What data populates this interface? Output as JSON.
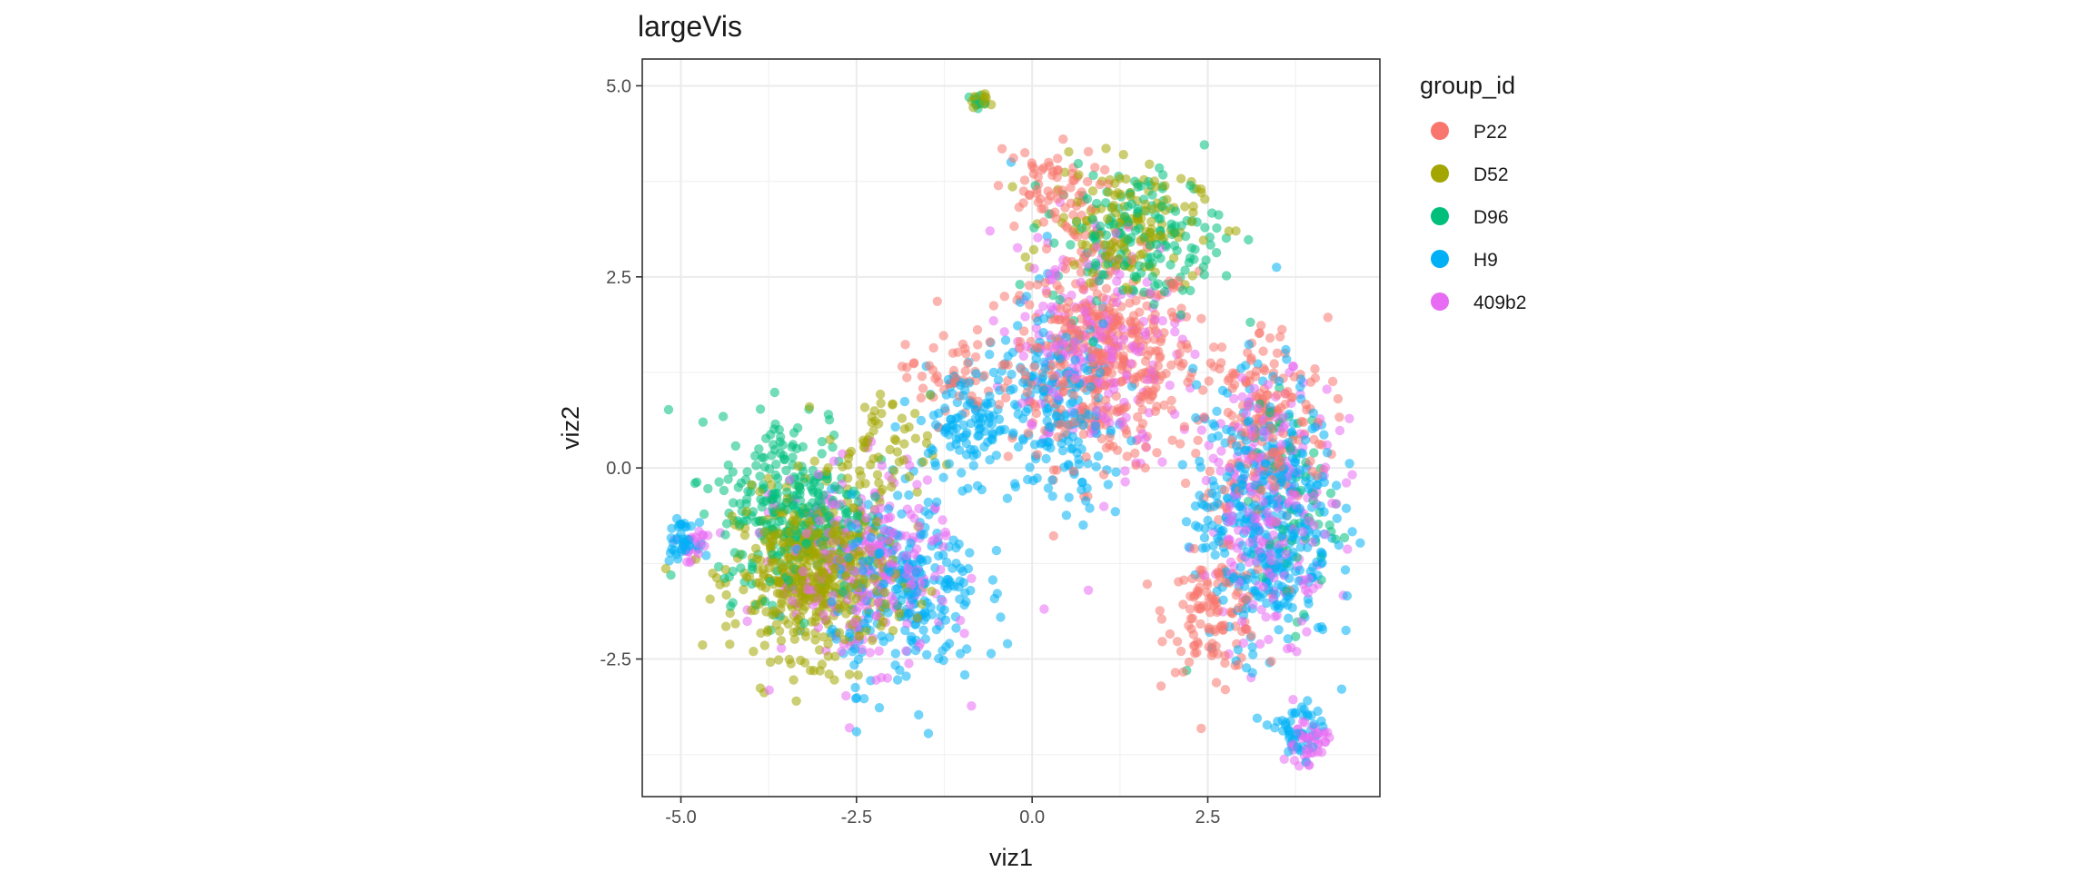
{
  "chart_data": {
    "type": "scatter",
    "title": "largeVis",
    "xlabel": "viz1",
    "ylabel": "viz2",
    "xlim": [
      -5.55,
      4.95
    ],
    "ylim": [
      -4.3,
      5.35
    ],
    "x_ticks": [
      -5.0,
      -2.5,
      0.0,
      2.5
    ],
    "x_tick_labels": [
      "-5.0",
      "-2.5",
      "0.0",
      "2.5"
    ],
    "y_ticks": [
      -2.5,
      0.0,
      2.5,
      5.0
    ],
    "y_tick_labels": [
      "-2.5",
      "0.0",
      "2.5",
      "5.0"
    ],
    "grid": true,
    "point_alpha": 0.55,
    "legend": {
      "title": "group_id",
      "position": "right"
    },
    "series": [
      {
        "name": "P22",
        "color": "#F8766D",
        "clusters": [
          {
            "center": [
              1.0,
              1.4
            ],
            "spread": [
              0.9,
              0.9
            ],
            "count": 430
          },
          {
            "center": [
              2.6,
              -1.9
            ],
            "spread": [
              0.45,
              0.5
            ],
            "count": 120
          },
          {
            "center": [
              3.3,
              0.6
            ],
            "spread": [
              0.6,
              0.9
            ],
            "count": 180
          },
          {
            "center": [
              0.2,
              3.6
            ],
            "spread": [
              0.5,
              0.4
            ],
            "count": 70
          },
          {
            "center": [
              -1.2,
              1.2
            ],
            "spread": [
              0.4,
              0.4
            ],
            "count": 50
          }
        ],
        "values": [
          [
            0.0,
            3.95
          ],
          [
            -0.6,
            1.65
          ],
          [
            3.6,
            1.5
          ],
          [
            2.75,
            -2.9
          ],
          [
            1.1,
            0.3
          ]
        ]
      },
      {
        "name": "D52",
        "color": "#A3A500",
        "clusters": [
          {
            "center": [
              -3.1,
              -1.4
            ],
            "spread": [
              0.75,
              0.7
            ],
            "count": 520
          },
          {
            "center": [
              1.3,
              3.2
            ],
            "spread": [
              0.7,
              0.5
            ],
            "count": 150
          },
          {
            "center": [
              -0.75,
              4.8
            ],
            "spread": [
              0.08,
              0.06
            ],
            "count": 14
          },
          {
            "center": [
              -2.2,
              0.2
            ],
            "spread": [
              0.5,
              0.5
            ],
            "count": 60
          }
        ],
        "values": [
          [
            -4.3,
            -1.9
          ],
          [
            -2.6,
            -2.7
          ],
          [
            2.9,
            3.1
          ],
          [
            1.3,
            4.1
          ],
          [
            -0.8,
            4.85
          ]
        ]
      },
      {
        "name": "D96",
        "color": "#00BF7D",
        "clusters": [
          {
            "center": [
              -3.4,
              -0.5
            ],
            "spread": [
              0.7,
              0.8
            ],
            "count": 300
          },
          {
            "center": [
              1.5,
              3.0
            ],
            "spread": [
              0.8,
              0.6
            ],
            "count": 170
          },
          {
            "center": [
              -0.8,
              4.8
            ],
            "spread": [
              0.08,
              0.07
            ],
            "count": 10
          },
          {
            "center": [
              3.7,
              -0.5
            ],
            "spread": [
              0.4,
              0.9
            ],
            "count": 70
          }
        ],
        "values": [
          [
            -3.6,
            0.5
          ],
          [
            -2.9,
            0.7
          ],
          [
            2.2,
            -2.65
          ],
          [
            2.3,
            3.65
          ],
          [
            -4.8,
            -0.2
          ]
        ]
      },
      {
        "name": "H9",
        "color": "#00B0F6",
        "clusters": [
          {
            "center": [
              3.3,
              -0.6
            ],
            "spread": [
              0.65,
              1.2
            ],
            "count": 420
          },
          {
            "center": [
              -1.8,
              -1.6
            ],
            "spread": [
              0.7,
              0.8
            ],
            "count": 260
          },
          {
            "center": [
              0.4,
              0.8
            ],
            "spread": [
              0.6,
              0.9
            ],
            "count": 200
          },
          {
            "center": [
              -5.0,
              -0.95
            ],
            "spread": [
              0.15,
              0.15
            ],
            "count": 40
          },
          {
            "center": [
              -0.9,
              0.6
            ],
            "spread": [
              0.5,
              0.5
            ],
            "count": 120
          },
          {
            "center": [
              3.8,
              -3.5
            ],
            "spread": [
              0.2,
              0.3
            ],
            "count": 45
          }
        ],
        "values": [
          [
            -2.5,
            -3.45
          ],
          [
            -0.35,
            -2.3
          ],
          [
            4.2,
            0.2
          ],
          [
            -0.3,
            4.0
          ],
          [
            3.9,
            -3.85
          ]
        ]
      },
      {
        "name": "409b2",
        "color": "#E76BF3",
        "clusters": [
          {
            "center": [
              -2.4,
              -1.3
            ],
            "spread": [
              0.8,
              0.8
            ],
            "count": 320
          },
          {
            "center": [
              3.4,
              -0.5
            ],
            "spread": [
              0.6,
              1.1
            ],
            "count": 230
          },
          {
            "center": [
              0.9,
              1.7
            ],
            "spread": [
              0.8,
              1.0
            ],
            "count": 220
          },
          {
            "center": [
              3.9,
              -3.6
            ],
            "spread": [
              0.2,
              0.25
            ],
            "count": 45
          },
          {
            "center": [
              -4.8,
              -1.0
            ],
            "spread": [
              0.2,
              0.15
            ],
            "count": 25
          }
        ],
        "values": [
          [
            -2.6,
            -3.4
          ],
          [
            3.8,
            -3.9
          ],
          [
            0.8,
            -1.6
          ],
          [
            -0.6,
            3.1
          ],
          [
            4.2,
            0.3
          ]
        ]
      }
    ]
  }
}
